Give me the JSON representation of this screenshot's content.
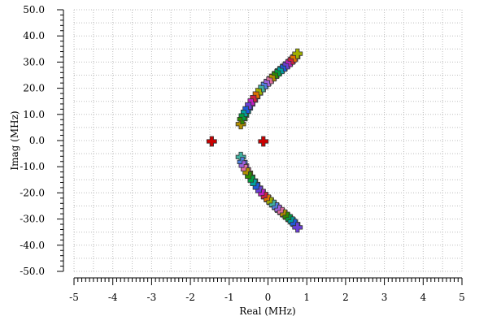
{
  "chart_data": {
    "type": "scatter",
    "title": "",
    "xlabel": "Real (MHz)",
    "ylabel": "Imag (MHz)",
    "xlim": [
      -5,
      5
    ],
    "ylim": [
      -50,
      50
    ],
    "grid": true,
    "legend": "none",
    "x_ticks": [
      "-5",
      "-4",
      "-3",
      "-2",
      "-1",
      "0",
      "1",
      "2",
      "3",
      "4",
      "5"
    ],
    "y_ticks": [
      "50.0",
      "40.0",
      "30.0",
      "20.0",
      "10.0",
      "0.0",
      "-10.0",
      "-20.0",
      "-30.0",
      "-40.0",
      "-50.0"
    ],
    "marker_colors": [
      "#b08d00",
      "#2e8b00",
      "#00a040",
      "#00a0a0",
      "#1e5bd8",
      "#6a3fd6",
      "#c020c0",
      "#d02040",
      "#e07000",
      "#a0b000",
      "#40b0a0",
      "#5080e0",
      "#a060e0",
      "#e070a0"
    ],
    "points": [
      {
        "x": -1.45,
        "y": -0.3,
        "color": "#cc0000"
      },
      {
        "x": -0.12,
        "y": -0.3,
        "color": "#cc0000"
      },
      {
        "x": -0.7,
        "y": 6.3
      },
      {
        "x": -0.66,
        "y": 8.2
      },
      {
        "x": -0.62,
        "y": 9.6
      },
      {
        "x": -0.57,
        "y": 11.0
      },
      {
        "x": -0.52,
        "y": 12.3
      },
      {
        "x": -0.46,
        "y": 13.8
      },
      {
        "x": -0.39,
        "y": 15.3
      },
      {
        "x": -0.33,
        "y": 16.6
      },
      {
        "x": -0.26,
        "y": 18.0
      },
      {
        "x": -0.19,
        "y": 19.3
      },
      {
        "x": -0.12,
        "y": 20.5
      },
      {
        "x": -0.05,
        "y": 21.6
      },
      {
        "x": 0.02,
        "y": 22.6
      },
      {
        "x": 0.09,
        "y": 23.6
      },
      {
        "x": 0.16,
        "y": 24.6
      },
      {
        "x": 0.23,
        "y": 25.6
      },
      {
        "x": 0.3,
        "y": 26.5
      },
      {
        "x": 0.37,
        "y": 27.4
      },
      {
        "x": 0.44,
        "y": 28.3
      },
      {
        "x": 0.51,
        "y": 29.2
      },
      {
        "x": 0.58,
        "y": 30.1
      },
      {
        "x": 0.64,
        "y": 31.0
      },
      {
        "x": 0.7,
        "y": 31.9
      },
      {
        "x": 0.76,
        "y": 33.2
      },
      {
        "x": -0.7,
        "y": -6.3
      },
      {
        "x": -0.66,
        "y": -8.2
      },
      {
        "x": -0.62,
        "y": -9.6
      },
      {
        "x": -0.57,
        "y": -11.0
      },
      {
        "x": -0.52,
        "y": -12.3
      },
      {
        "x": -0.46,
        "y": -13.8
      },
      {
        "x": -0.39,
        "y": -15.3
      },
      {
        "x": -0.33,
        "y": -16.6
      },
      {
        "x": -0.26,
        "y": -18.0
      },
      {
        "x": -0.19,
        "y": -19.3
      },
      {
        "x": -0.12,
        "y": -20.5
      },
      {
        "x": -0.05,
        "y": -21.6
      },
      {
        "x": 0.02,
        "y": -22.6
      },
      {
        "x": 0.09,
        "y": -23.6
      },
      {
        "x": 0.16,
        "y": -24.6
      },
      {
        "x": 0.23,
        "y": -25.6
      },
      {
        "x": 0.3,
        "y": -26.5
      },
      {
        "x": 0.37,
        "y": -27.4
      },
      {
        "x": 0.44,
        "y": -28.3
      },
      {
        "x": 0.51,
        "y": -29.2
      },
      {
        "x": 0.58,
        "y": -30.1
      },
      {
        "x": 0.64,
        "y": -31.0
      },
      {
        "x": 0.7,
        "y": -31.9
      },
      {
        "x": 0.76,
        "y": -33.2
      }
    ]
  }
}
